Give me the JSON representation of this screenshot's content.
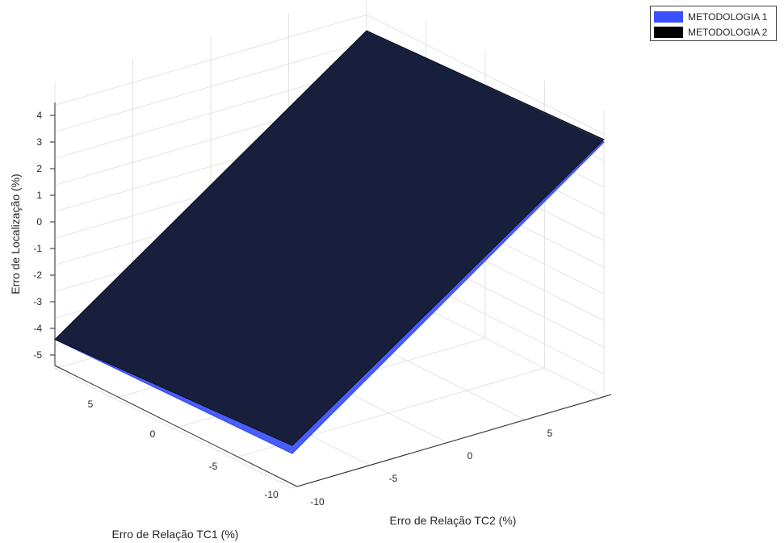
{
  "chart_data": {
    "type": "surface3d",
    "title": "",
    "title_partial_visible": "",
    "xlabel": "Erro de Relação TC1 (%)",
    "ylabel": "Erro de Relação TC2 (%)",
    "zlabel": "Erro de Localização (%)",
    "x_ticks": [
      5,
      0,
      -5,
      -10
    ],
    "y_ticks": [
      -10,
      -5,
      0,
      5
    ],
    "z_ticks": [
      4,
      3,
      2,
      1,
      0,
      -1,
      -2,
      -3,
      -4,
      -5
    ],
    "z_lim": [
      -5,
      4
    ],
    "grid": true,
    "legend_position": "top-right",
    "series": [
      {
        "name": "METODOLOGIA 1",
        "color": "#3a50ff",
        "corners": [
          {
            "x": 10,
            "y": -10,
            "z": -4.8
          },
          {
            "x": -10,
            "y": -10,
            "z": -4.6
          },
          {
            "x": -10,
            "y": 10,
            "z": 3.7
          },
          {
            "x": 10,
            "y": 10,
            "z": 3.4
          }
        ]
      },
      {
        "name": "METODOLOGIA 2",
        "color": "#141b2e",
        "corners": [
          {
            "x": 10,
            "y": -10,
            "z": -4.8
          },
          {
            "x": -10,
            "y": -10,
            "z": -4.3
          },
          {
            "x": -10,
            "y": 10,
            "z": 3.8
          },
          {
            "x": 10,
            "y": 10,
            "z": 3.4
          }
        ]
      }
    ]
  },
  "legend": {
    "items": [
      {
        "label": "METODOLOGIA 1",
        "color": "#3a50ff"
      },
      {
        "label": "METODOLOGIA 2",
        "color": "#000000"
      }
    ]
  }
}
